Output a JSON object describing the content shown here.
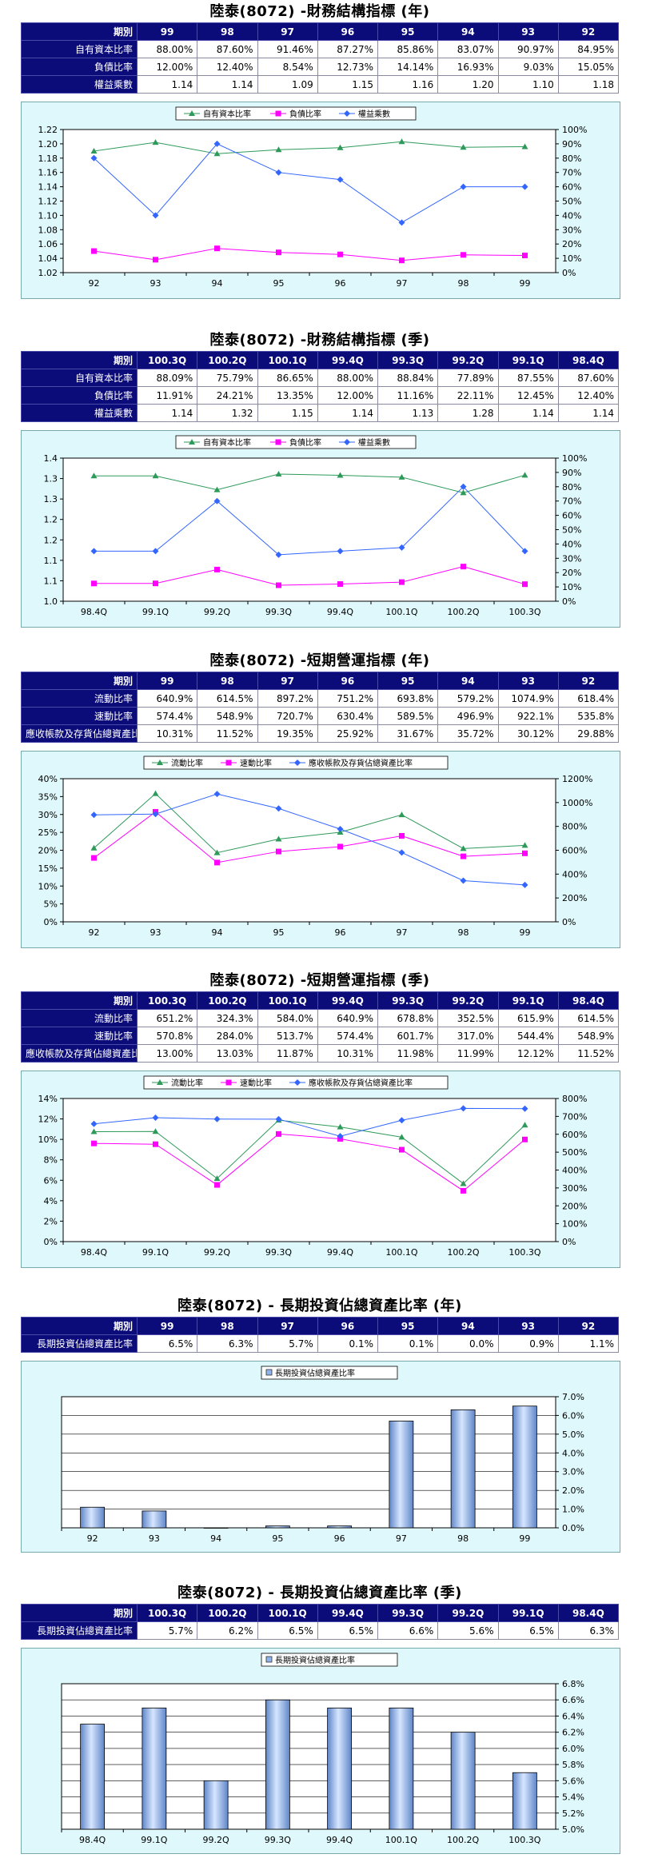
{
  "sections": [
    {
      "title": "陸泰(8072) -財務結構指標 (年)",
      "table": {
        "header_label": "期別",
        "columns": [
          "99",
          "98",
          "97",
          "96",
          "95",
          "94",
          "93",
          "92"
        ],
        "rows": [
          {
            "label": "自有資本比率",
            "values": [
              "88.00%",
              "87.60%",
              "91.46%",
              "87.27%",
              "85.86%",
              "83.07%",
              "90.97%",
              "84.95%"
            ]
          },
          {
            "label": "負債比率",
            "values": [
              "12.00%",
              "12.40%",
              "8.54%",
              "12.73%",
              "14.14%",
              "16.93%",
              "9.03%",
              "15.05%"
            ]
          },
          {
            "label": "權益乘數",
            "values": [
              "1.14",
              "1.14",
              "1.09",
              "1.15",
              "1.16",
              "1.20",
              "1.10",
              "1.18"
            ]
          }
        ]
      }
    },
    {
      "title": "陸泰(8072) -財務結構指標 (季)",
      "table": {
        "header_label": "期別",
        "columns": [
          "100.3Q",
          "100.2Q",
          "100.1Q",
          "99.4Q",
          "99.3Q",
          "99.2Q",
          "99.1Q",
          "98.4Q"
        ],
        "rows": [
          {
            "label": "自有資本比率",
            "values": [
              "88.09%",
              "75.79%",
              "86.65%",
              "88.00%",
              "88.84%",
              "77.89%",
              "87.55%",
              "87.60%"
            ]
          },
          {
            "label": "負債比率",
            "values": [
              "11.91%",
              "24.21%",
              "13.35%",
              "12.00%",
              "11.16%",
              "22.11%",
              "12.45%",
              "12.40%"
            ]
          },
          {
            "label": "權益乘數",
            "values": [
              "1.14",
              "1.32",
              "1.15",
              "1.14",
              "1.13",
              "1.28",
              "1.14",
              "1.14"
            ]
          }
        ]
      }
    },
    {
      "title": "陸泰(8072) -短期營運指標 (年)",
      "table": {
        "header_label": "期別",
        "columns": [
          "99",
          "98",
          "97",
          "96",
          "95",
          "94",
          "93",
          "92"
        ],
        "rows": [
          {
            "label": "流動比率",
            "values": [
              "640.9%",
              "614.5%",
              "897.2%",
              "751.2%",
              "693.8%",
              "579.2%",
              "1074.9%",
              "618.4%"
            ]
          },
          {
            "label": "速動比率",
            "values": [
              "574.4%",
              "548.9%",
              "720.7%",
              "630.4%",
              "589.5%",
              "496.9%",
              "922.1%",
              "535.8%"
            ]
          },
          {
            "label": "應收帳款及存貨佔總資產比率",
            "values": [
              "10.31%",
              "11.52%",
              "19.35%",
              "25.92%",
              "31.67%",
              "35.72%",
              "30.12%",
              "29.88%"
            ]
          }
        ]
      }
    },
    {
      "title": "陸泰(8072) -短期營運指標 (季)",
      "table": {
        "header_label": "期別",
        "columns": [
          "100.3Q",
          "100.2Q",
          "100.1Q",
          "99.4Q",
          "99.3Q",
          "99.2Q",
          "99.1Q",
          "98.4Q"
        ],
        "rows": [
          {
            "label": "流動比率",
            "values": [
              "651.2%",
              "324.3%",
              "584.0%",
              "640.9%",
              "678.8%",
              "352.5%",
              "615.9%",
              "614.5%"
            ]
          },
          {
            "label": "速動比率",
            "values": [
              "570.8%",
              "284.0%",
              "513.7%",
              "574.4%",
              "601.7%",
              "317.0%",
              "544.4%",
              "548.9%"
            ]
          },
          {
            "label": "應收帳款及存貨佔總資產比率",
            "values": [
              "13.00%",
              "13.03%",
              "11.87%",
              "10.31%",
              "11.98%",
              "11.99%",
              "12.12%",
              "11.52%"
            ]
          }
        ]
      }
    },
    {
      "title": "陸泰(8072) - 長期投資佔總資產比率 (年)",
      "table": {
        "header_label": "期別",
        "columns": [
          "99",
          "98",
          "97",
          "96",
          "95",
          "94",
          "93",
          "92"
        ],
        "rows": [
          {
            "label": "長期投資佔總資產比率",
            "values": [
              "6.5%",
              "6.3%",
              "5.7%",
              "0.1%",
              "0.1%",
              "0.0%",
              "0.9%",
              "1.1%"
            ]
          }
        ]
      }
    },
    {
      "title": "陸泰(8072) - 長期投資佔總資產比率 (季)",
      "table": {
        "header_label": "期別",
        "columns": [
          "100.3Q",
          "100.2Q",
          "100.1Q",
          "99.4Q",
          "99.3Q",
          "99.2Q",
          "99.1Q",
          "98.4Q"
        ],
        "rows": [
          {
            "label": "長期投資佔總資產比率",
            "values": [
              "5.7%",
              "6.2%",
              "6.5%",
              "6.5%",
              "6.6%",
              "5.6%",
              "6.5%",
              "6.3%"
            ]
          }
        ]
      }
    }
  ],
  "colors": {
    "header_bg": "#0b0b7a",
    "chart_bg": "#dff8fb",
    "green": "#2e9a5a",
    "magenta": "#ff00ff",
    "blue": "#3366ff",
    "bar": "#8fb4ea"
  },
  "chart_data": [
    {
      "type": "line",
      "categories": [
        "92",
        "93",
        "94",
        "95",
        "96",
        "97",
        "98",
        "99"
      ],
      "series": [
        {
          "name": "自有資本比率",
          "axis": "right",
          "marker": "triangle",
          "color": "#2e9a5a",
          "values": [
            84.95,
            90.97,
            83.07,
            85.86,
            87.27,
            91.46,
            87.6,
            88.0
          ]
        },
        {
          "name": "負債比率",
          "axis": "right",
          "marker": "square",
          "color": "#ff00ff",
          "values": [
            15.05,
            9.03,
            16.93,
            14.14,
            12.73,
            8.54,
            12.4,
            12.0
          ]
        },
        {
          "name": "權益乘數",
          "axis": "left",
          "marker": "diamond",
          "color": "#3366ff",
          "values": [
            1.18,
            1.1,
            1.2,
            1.16,
            1.15,
            1.09,
            1.14,
            1.14
          ]
        }
      ],
      "yleft": {
        "min": 1.02,
        "max": 1.22,
        "ticks": [
          "1.02",
          "1.04",
          "1.06",
          "1.08",
          "1.10",
          "1.12",
          "1.14",
          "1.16",
          "1.18",
          "1.20",
          "1.22"
        ]
      },
      "yright": {
        "min": 0,
        "max": 100,
        "ticks": [
          "0%",
          "10%",
          "20%",
          "30%",
          "40%",
          "50%",
          "60%",
          "70%",
          "80%",
          "90%",
          "100%"
        ]
      },
      "legend": "top"
    },
    {
      "type": "line",
      "categories": [
        "98.4Q",
        "99.1Q",
        "99.2Q",
        "99.3Q",
        "99.4Q",
        "100.1Q",
        "100.2Q",
        "100.3Q"
      ],
      "series": [
        {
          "name": "自有資本比率",
          "axis": "right",
          "marker": "triangle",
          "color": "#2e9a5a",
          "values": [
            87.6,
            87.55,
            77.89,
            88.84,
            88.0,
            86.65,
            75.79,
            88.09
          ]
        },
        {
          "name": "負債比率",
          "axis": "right",
          "marker": "square",
          "color": "#ff00ff",
          "values": [
            12.4,
            12.45,
            22.11,
            11.16,
            12.0,
            13.35,
            24.21,
            11.91
          ]
        },
        {
          "name": "權益乘數",
          "axis": "left",
          "marker": "diamond",
          "color": "#3366ff",
          "values": [
            1.14,
            1.14,
            1.28,
            1.13,
            1.14,
            1.15,
            1.32,
            1.14
          ]
        }
      ],
      "yleft": {
        "min": 1.0,
        "max": 1.4,
        "ticks": [
          "1.0",
          "1.1",
          "1.1",
          "1.2",
          "1.2",
          "1.3",
          "1.3",
          "1.4"
        ]
      },
      "yright": {
        "min": 0,
        "max": 100,
        "ticks": [
          "0%",
          "10%",
          "20%",
          "30%",
          "40%",
          "50%",
          "60%",
          "70%",
          "80%",
          "90%",
          "100%"
        ]
      },
      "legend": "top"
    },
    {
      "type": "line",
      "categories": [
        "92",
        "93",
        "94",
        "95",
        "96",
        "97",
        "98",
        "99"
      ],
      "series": [
        {
          "name": "流動比率",
          "axis": "right",
          "marker": "triangle",
          "color": "#2e9a5a",
          "values": [
            618.4,
            1074.9,
            579.2,
            693.8,
            751.2,
            897.2,
            614.5,
            640.9
          ]
        },
        {
          "name": "速動比率",
          "axis": "right",
          "marker": "square",
          "color": "#ff00ff",
          "values": [
            535.8,
            922.1,
            496.9,
            589.5,
            630.4,
            720.7,
            548.9,
            574.4
          ]
        },
        {
          "name": "應收帳款及存貨佔總資產比率",
          "axis": "left",
          "marker": "diamond",
          "color": "#3366ff",
          "values": [
            29.88,
            30.12,
            35.72,
            31.67,
            25.92,
            19.35,
            11.52,
            10.31
          ]
        }
      ],
      "yleft": {
        "min": 0,
        "max": 40,
        "ticks": [
          "0%",
          "5%",
          "10%",
          "15%",
          "20%",
          "25%",
          "30%",
          "35%",
          "40%"
        ]
      },
      "yright": {
        "min": 0,
        "max": 1200,
        "ticks": [
          "0%",
          "200%",
          "400%",
          "600%",
          "800%",
          "1000%",
          "1200%"
        ]
      },
      "legend": "top"
    },
    {
      "type": "line",
      "categories": [
        "98.4Q",
        "99.1Q",
        "99.2Q",
        "99.3Q",
        "99.4Q",
        "100.1Q",
        "100.2Q",
        "100.3Q"
      ],
      "series": [
        {
          "name": "流動比率",
          "axis": "right",
          "marker": "triangle",
          "color": "#2e9a5a",
          "values": [
            614.5,
            615.9,
            352.5,
            678.8,
            640.9,
            584.0,
            324.3,
            651.2
          ]
        },
        {
          "name": "速動比率",
          "axis": "right",
          "marker": "square",
          "color": "#ff00ff",
          "values": [
            548.9,
            544.4,
            317.0,
            601.7,
            574.4,
            513.7,
            284.0,
            570.8
          ]
        },
        {
          "name": "應收帳款及存貨佔總資產比率",
          "axis": "left",
          "marker": "diamond",
          "color": "#3366ff",
          "values": [
            11.52,
            12.12,
            11.99,
            11.98,
            10.31,
            11.87,
            13.03,
            13.0
          ]
        }
      ],
      "yleft": {
        "min": 0,
        "max": 14,
        "ticks": [
          "0%",
          "2%",
          "4%",
          "6%",
          "8%",
          "10%",
          "12%",
          "14%"
        ]
      },
      "yright": {
        "min": 0,
        "max": 800,
        "ticks": [
          "0%",
          "100%",
          "200%",
          "300%",
          "400%",
          "500%",
          "600%",
          "700%",
          "800%"
        ]
      },
      "legend": "top"
    },
    {
      "type": "bar",
      "categories": [
        "92",
        "93",
        "94",
        "95",
        "96",
        "97",
        "98",
        "99"
      ],
      "series": [
        {
          "name": "長期投資佔總資產比率",
          "axis": "right",
          "color": "#8fb4ea",
          "values": [
            1.1,
            0.9,
            0.0,
            0.1,
            0.1,
            5.7,
            6.3,
            6.5
          ]
        }
      ],
      "yright": {
        "min": 0,
        "max": 7,
        "ticks": [
          "0.0%",
          "1.0%",
          "2.0%",
          "3.0%",
          "4.0%",
          "5.0%",
          "6.0%",
          "7.0%"
        ]
      },
      "legend": "top"
    },
    {
      "type": "bar",
      "categories": [
        "98.4Q",
        "99.1Q",
        "99.2Q",
        "99.3Q",
        "99.4Q",
        "100.1Q",
        "100.2Q",
        "100.3Q"
      ],
      "series": [
        {
          "name": "長期投資佔總資產比率",
          "axis": "right",
          "color": "#8fb4ea",
          "values": [
            6.3,
            6.5,
            5.6,
            6.6,
            6.5,
            6.5,
            6.2,
            5.7
          ]
        }
      ],
      "yright": {
        "min": 5.0,
        "max": 6.8,
        "ticks": [
          "5.0%",
          "5.2%",
          "5.4%",
          "5.6%",
          "5.8%",
          "6.0%",
          "6.2%",
          "6.4%",
          "6.6%",
          "6.8%"
        ]
      },
      "legend": "top"
    }
  ]
}
